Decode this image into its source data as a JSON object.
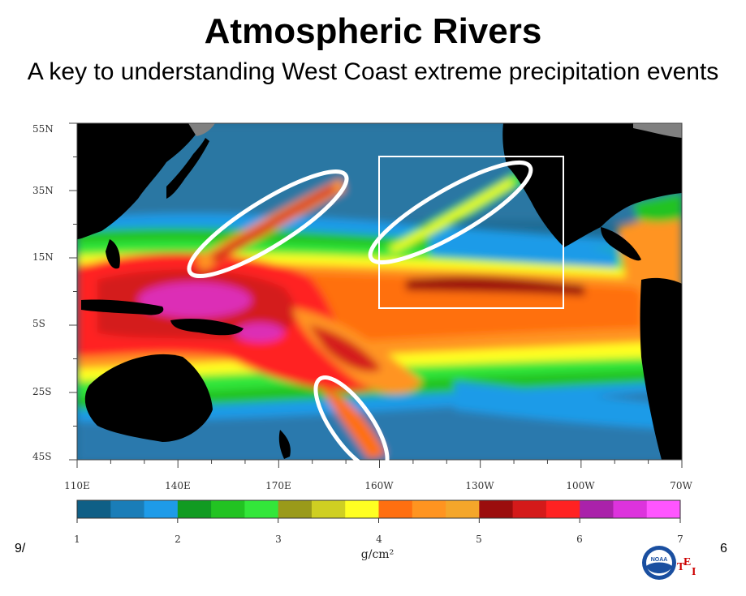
{
  "title": "Atmospheric Rivers",
  "subtitle": "A key to understanding West Coast extreme precipitation events",
  "map": {
    "lat_labels": [
      "55N",
      "35N",
      "15N",
      "5S",
      "25S",
      "45S"
    ],
    "lon_labels": [
      "110E",
      "140E",
      "170E",
      "160W",
      "130W",
      "100W",
      "70W"
    ],
    "highlight_ellipses": [
      "western-pacific-river",
      "northeast-pacific-river",
      "south-pacific-river"
    ],
    "highlight_box": "west-coast-region"
  },
  "colorbar": {
    "ticks": [
      "1",
      "2",
      "3",
      "4",
      "5",
      "6",
      "7"
    ],
    "unit": "g/cm²",
    "colors": [
      "#0f5f86",
      "#1a7db8",
      "#1e9be8",
      "#119b22",
      "#22c322",
      "#33e63a",
      "#9a9a1a",
      "#cfcf22",
      "#ffff22",
      "#ff6f10",
      "#ff9420",
      "#f4a62a",
      "#9b0d0d",
      "#d41a1a",
      "#ff2222",
      "#aa22aa",
      "#dd33dd",
      "#ff55ff"
    ]
  },
  "footer": {
    "date": "9/",
    "page": "6",
    "logo_text": "NOAA",
    "logo_letters": [
      "E",
      "T",
      "I"
    ]
  },
  "colors": {
    "land": "#000000",
    "ocean": "#2a6f98",
    "ice": "#808080",
    "box": "#ffffff",
    "ellipse": "#ffffff"
  }
}
